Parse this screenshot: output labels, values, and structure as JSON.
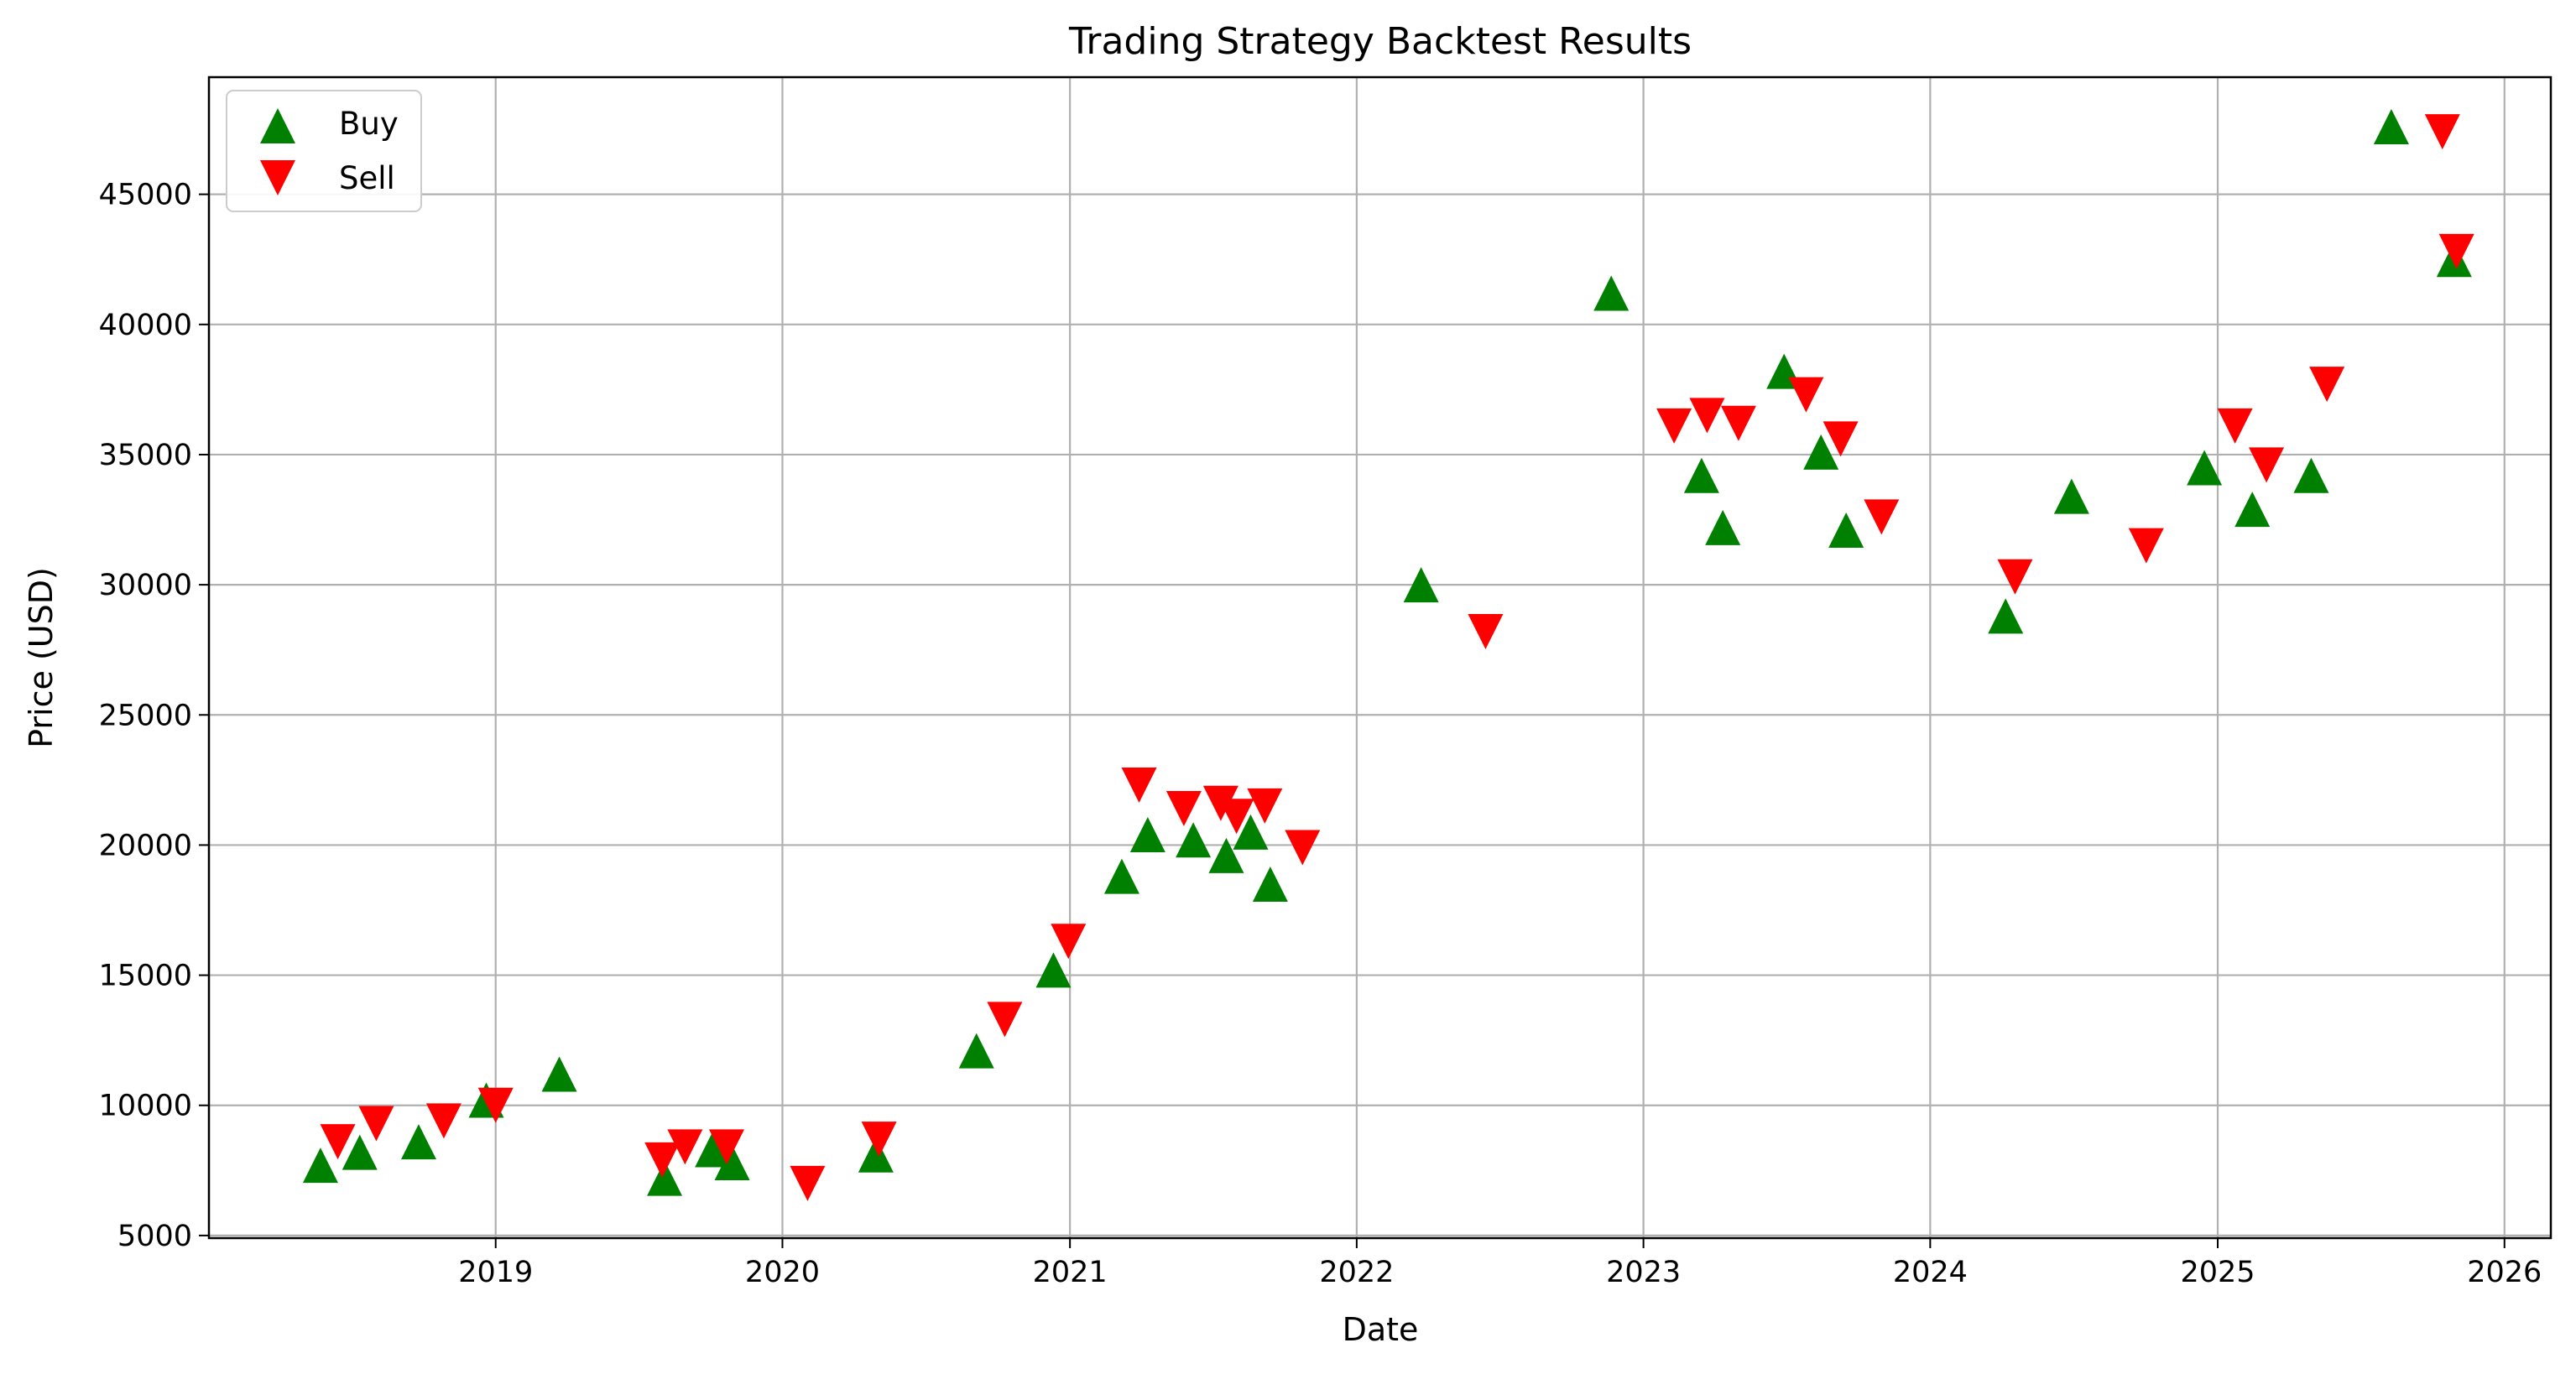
{
  "chart_data": {
    "type": "scatter",
    "title": "Trading Strategy Backtest Results",
    "xlabel": "Date",
    "ylabel": "Price (USD)",
    "xlim": [
      "2018-01-01",
      "2026-03-01"
    ],
    "ylim": [
      4900,
      49500
    ],
    "x_ticks": [
      "2019-01-01",
      "2020-01-01",
      "2021-01-01",
      "2022-01-01",
      "2023-01-01",
      "2024-01-01",
      "2025-01-01",
      "2026-01-01"
    ],
    "x_tick_labels": [
      "2019",
      "2020",
      "2021",
      "2022",
      "2023",
      "2024",
      "2025",
      "2026"
    ],
    "y_ticks": [
      5000,
      10000,
      15000,
      20000,
      25000,
      30000,
      35000,
      40000,
      45000
    ],
    "y_tick_labels": [
      "5000",
      "10000",
      "15000",
      "20000",
      "25000",
      "30000",
      "35000",
      "40000",
      "45000"
    ],
    "grid": true,
    "legend_position": "upper-left",
    "series": [
      {
        "name": "Buy",
        "marker": "triangle-up",
        "color": "#008000",
        "points": [
          {
            "x": "2018-05-23",
            "y": 7700
          },
          {
            "x": "2018-07-12",
            "y": 8200
          },
          {
            "x": "2018-09-25",
            "y": 8600
          },
          {
            "x": "2018-12-20",
            "y": 10200
          },
          {
            "x": "2019-03-23",
            "y": 11200
          },
          {
            "x": "2019-08-04",
            "y": 7200
          },
          {
            "x": "2019-10-04",
            "y": 8300
          },
          {
            "x": "2019-10-29",
            "y": 7800
          },
          {
            "x": "2020-04-29",
            "y": 8100
          },
          {
            "x": "2020-09-04",
            "y": 12100
          },
          {
            "x": "2020-12-11",
            "y": 15200
          },
          {
            "x": "2021-03-08",
            "y": 18800
          },
          {
            "x": "2021-04-10",
            "y": 20400
          },
          {
            "x": "2021-06-07",
            "y": 20200
          },
          {
            "x": "2021-07-19",
            "y": 19600
          },
          {
            "x": "2021-08-19",
            "y": 20500
          },
          {
            "x": "2021-09-13",
            "y": 18500
          },
          {
            "x": "2022-03-24",
            "y": 30000
          },
          {
            "x": "2022-11-21",
            "y": 41200
          },
          {
            "x": "2023-03-16",
            "y": 34200
          },
          {
            "x": "2023-04-12",
            "y": 32200
          },
          {
            "x": "2023-06-29",
            "y": 38200
          },
          {
            "x": "2023-08-15",
            "y": 35100
          },
          {
            "x": "2023-09-16",
            "y": 32100
          },
          {
            "x": "2024-04-06",
            "y": 28800
          },
          {
            "x": "2024-06-29",
            "y": 33400
          },
          {
            "x": "2024-12-15",
            "y": 34500
          },
          {
            "x": "2025-02-14",
            "y": 32900
          },
          {
            "x": "2025-04-30",
            "y": 34200
          },
          {
            "x": "2025-08-10",
            "y": 47600
          },
          {
            "x": "2025-10-29",
            "y": 42500
          }
        ]
      },
      {
        "name": "Sell",
        "marker": "triangle-down",
        "color": "#ff0000",
        "points": [
          {
            "x": "2018-06-14",
            "y": 8600
          },
          {
            "x": "2018-08-02",
            "y": 9300
          },
          {
            "x": "2018-10-27",
            "y": 9400
          },
          {
            "x": "2019-01-01",
            "y": 10000
          },
          {
            "x": "2019-08-01",
            "y": 7900
          },
          {
            "x": "2019-08-30",
            "y": 8400
          },
          {
            "x": "2019-10-22",
            "y": 8400
          },
          {
            "x": "2020-02-02",
            "y": 7000
          },
          {
            "x": "2020-05-03",
            "y": 8700
          },
          {
            "x": "2020-10-10",
            "y": 13300
          },
          {
            "x": "2020-12-30",
            "y": 16300
          },
          {
            "x": "2021-03-30",
            "y": 22300
          },
          {
            "x": "2021-05-26",
            "y": 21400
          },
          {
            "x": "2021-07-12",
            "y": 21600
          },
          {
            "x": "2021-08-01",
            "y": 21100
          },
          {
            "x": "2021-09-06",
            "y": 21500
          },
          {
            "x": "2021-10-24",
            "y": 19900
          },
          {
            "x": "2022-06-14",
            "y": 28200
          },
          {
            "x": "2023-02-09",
            "y": 36100
          },
          {
            "x": "2023-03-23",
            "y": 36500
          },
          {
            "x": "2023-05-02",
            "y": 36200
          },
          {
            "x": "2023-07-27",
            "y": 37300
          },
          {
            "x": "2023-09-09",
            "y": 35600
          },
          {
            "x": "2023-10-31",
            "y": 32600
          },
          {
            "x": "2024-04-18",
            "y": 30300
          },
          {
            "x": "2024-10-02",
            "y": 31500
          },
          {
            "x": "2025-01-23",
            "y": 36100
          },
          {
            "x": "2025-03-04",
            "y": 34600
          },
          {
            "x": "2025-05-20",
            "y": 37700
          },
          {
            "x": "2025-10-14",
            "y": 47400
          },
          {
            "x": "2025-11-01",
            "y": 42800
          }
        ]
      }
    ]
  }
}
